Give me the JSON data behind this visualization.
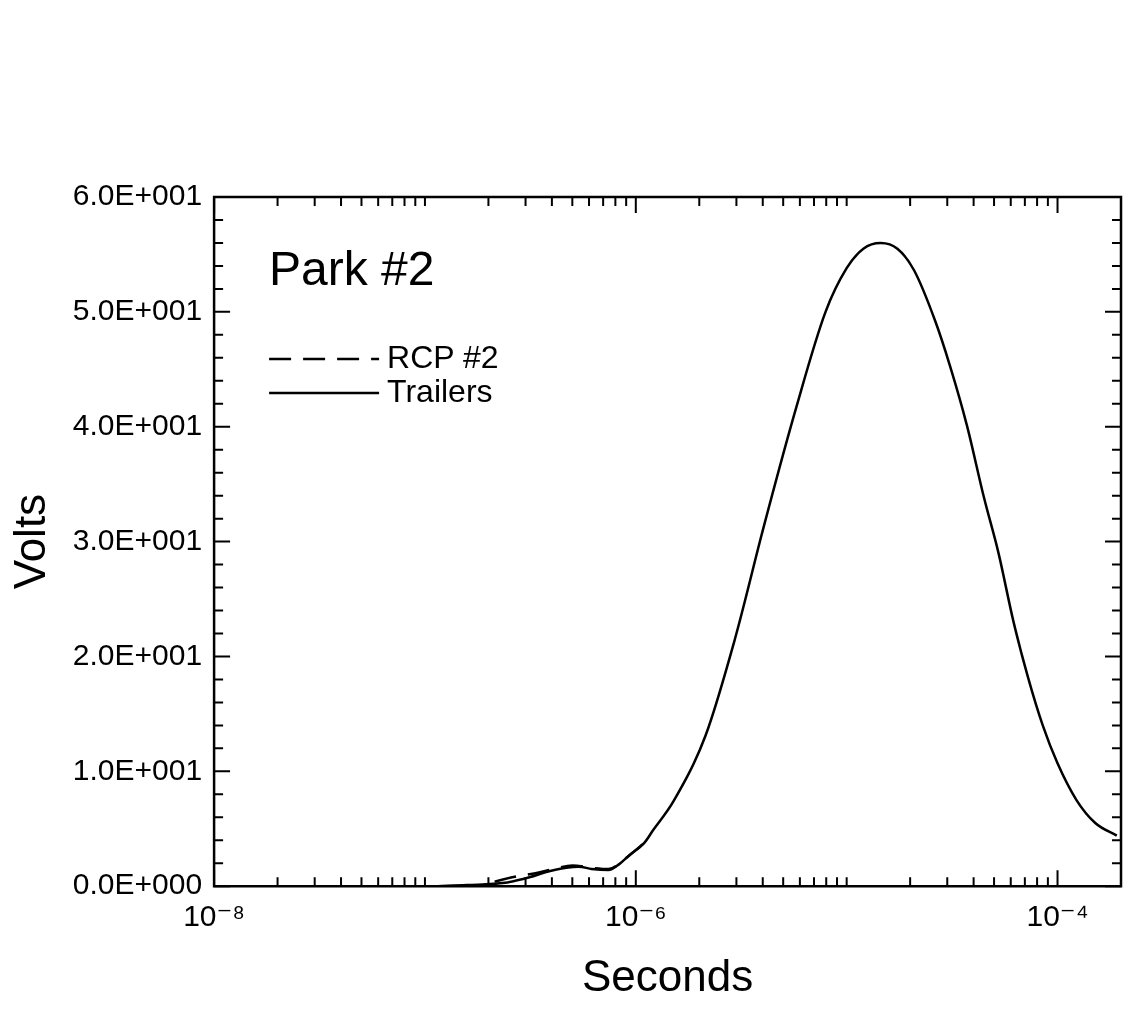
{
  "chart_data": {
    "type": "line",
    "title": "Park #2",
    "xlabel": "Seconds",
    "ylabel": "Volts",
    "log": "x",
    "legend": "top left",
    "xlim": [
      1e-08,
      0.0002
    ],
    "ylim": [
      0,
      60
    ],
    "xticks": [
      {
        "value": 1e-08,
        "label": "10⁻⁸"
      },
      {
        "value": 2e-08,
        "label": null
      },
      {
        "value": 3e-08,
        "label": null
      },
      {
        "value": 4e-08,
        "label": null
      },
      {
        "value": 5e-08,
        "label": null
      },
      {
        "value": 6e-08,
        "label": null
      },
      {
        "value": 7e-08,
        "label": null
      },
      {
        "value": 8e-08,
        "label": null
      },
      {
        "value": 9e-08,
        "label": null
      },
      {
        "value": 1e-07,
        "label": null
      },
      {
        "value": 2e-07,
        "label": null
      },
      {
        "value": 3e-07,
        "label": null
      },
      {
        "value": 4e-07,
        "label": null
      },
      {
        "value": 5e-07,
        "label": null
      },
      {
        "value": 6e-07,
        "label": null
      },
      {
        "value": 7e-07,
        "label": null
      },
      {
        "value": 8e-07,
        "label": null
      },
      {
        "value": 9e-07,
        "label": null
      },
      {
        "value": 1e-06,
        "label": "10⁻⁶"
      },
      {
        "value": 2e-06,
        "label": null
      },
      {
        "value": 3e-06,
        "label": null
      },
      {
        "value": 4e-06,
        "label": null
      },
      {
        "value": 5e-06,
        "label": null
      },
      {
        "value": 6e-06,
        "label": null
      },
      {
        "value": 7e-06,
        "label": null
      },
      {
        "value": 8e-06,
        "label": null
      },
      {
        "value": 9e-06,
        "label": null
      },
      {
        "value": 1e-05,
        "label": null
      },
      {
        "value": 2e-05,
        "label": null
      },
      {
        "value": 3e-05,
        "label": null
      },
      {
        "value": 4e-05,
        "label": null
      },
      {
        "value": 5e-05,
        "label": null
      },
      {
        "value": 6e-05,
        "label": null
      },
      {
        "value": 7e-05,
        "label": null
      },
      {
        "value": 8e-05,
        "label": null
      },
      {
        "value": 9e-05,
        "label": null
      },
      {
        "value": 0.0001,
        "label": "10⁻⁴"
      }
    ],
    "yticks": [
      {
        "value": 0,
        "label": "0.0E+000"
      },
      {
        "value": 2,
        "label": null
      },
      {
        "value": 4,
        "label": null
      },
      {
        "value": 6,
        "label": null
      },
      {
        "value": 8,
        "label": null
      },
      {
        "value": 10,
        "label": "1.0E+001"
      },
      {
        "value": 12,
        "label": null
      },
      {
        "value": 14,
        "label": null
      },
      {
        "value": 16,
        "label": null
      },
      {
        "value": 18,
        "label": null
      },
      {
        "value": 20,
        "label": "2.0E+001"
      },
      {
        "value": 22,
        "label": null
      },
      {
        "value": 24,
        "label": null
      },
      {
        "value": 26,
        "label": null
      },
      {
        "value": 28,
        "label": null
      },
      {
        "value": 30,
        "label": "3.0E+001"
      },
      {
        "value": 32,
        "label": null
      },
      {
        "value": 34,
        "label": null
      },
      {
        "value": 36,
        "label": null
      },
      {
        "value": 38,
        "label": null
      },
      {
        "value": 40,
        "label": "4.0E+001"
      },
      {
        "value": 42,
        "label": null
      },
      {
        "value": 44,
        "label": null
      },
      {
        "value": 46,
        "label": null
      },
      {
        "value": 48,
        "label": null
      },
      {
        "value": 50,
        "label": "5.0E+001"
      },
      {
        "value": 52,
        "label": null
      },
      {
        "value": 54,
        "label": null
      },
      {
        "value": 56,
        "label": null
      },
      {
        "value": 58,
        "label": null
      },
      {
        "value": 60,
        "label": "6.0E+001"
      }
    ],
    "series": [
      {
        "name": "RCP #2",
        "color": "#000000",
        "line_style": "dashed",
        "x": [
          2.14e-07,
          2.63e-07,
          3.47e-07,
          4.07e-07,
          5.01e-07,
          6.17e-07,
          7.41e-07,
          9.33e-07,
          1.1e-06
        ],
        "values": [
          0.4,
          0.8,
          1.2,
          1.5,
          1.8,
          1.6,
          1.5,
          2.7,
          3.8
        ]
      },
      {
        "name": "Trailers",
        "color": "#000000",
        "line_style": "solid",
        "x": [
          1.15e-07,
          1.58e-07,
          2.4e-07,
          3.16e-07,
          3.72e-07,
          4.68e-07,
          5.37e-07,
          6.17e-07,
          7.41e-07,
          8.32e-07,
          9.33e-07,
          1.1e-06,
          1.2e-06,
          1.51e-06,
          2.14e-06,
          2.95e-06,
          4.07e-06,
          5.75e-06,
          7.94e-06,
          1e-05,
          1.2e-05,
          1.45e-05,
          1.74e-05,
          2.09e-05,
          2.63e-05,
          3.09e-05,
          3.72e-05,
          4.47e-05,
          5.25e-05,
          6.17e-05,
          7.24e-05,
          8.51e-05,
          0.0001,
          0.000123,
          0.000151,
          0.000191
        ],
        "values": [
          0,
          0.1,
          0.3,
          0.8,
          1.2,
          1.6,
          1.7,
          1.5,
          1.4,
          1.9,
          2.7,
          3.8,
          4.8,
          7.4,
          13.1,
          21.5,
          31.5,
          41.6,
          50,
          53.8,
          55.5,
          56,
          55.5,
          53.6,
          49.2,
          45.3,
          40.1,
          33.9,
          29,
          23.1,
          18.2,
          14,
          10.7,
          7.5,
          5.5,
          4.4
        ]
      }
    ]
  }
}
